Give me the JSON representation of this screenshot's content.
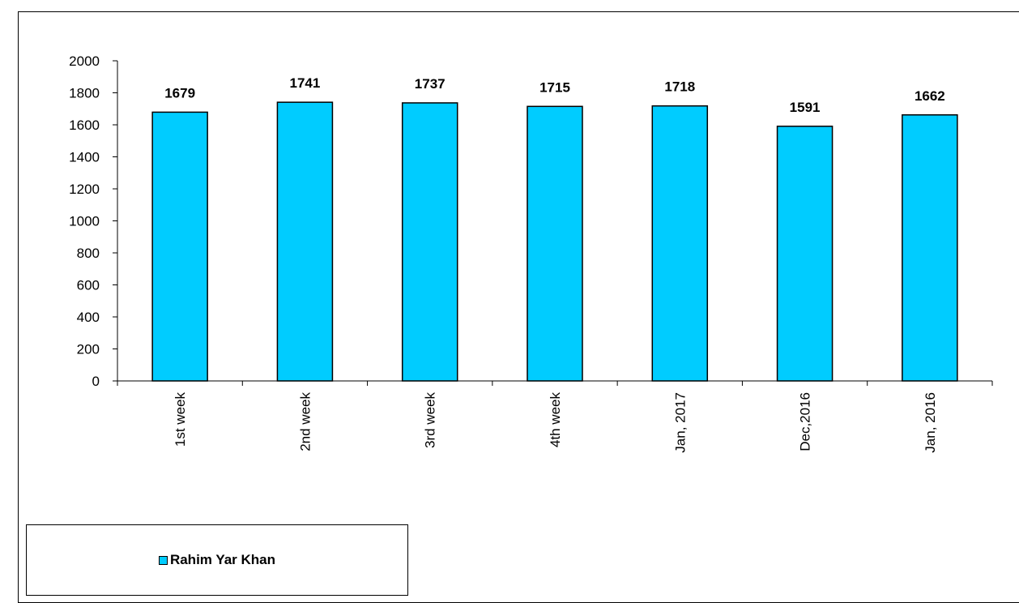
{
  "chart_data": {
    "type": "bar",
    "categories": [
      "1st week",
      "2nd week",
      "3rd week",
      "4th week",
      "Jan, 2017",
      "Dec,2016",
      "Jan, 2016"
    ],
    "series": [
      {
        "name": "Rahim Yar Khan",
        "values": [
          1679,
          1741,
          1737,
          1715,
          1718,
          1591,
          1662
        ]
      }
    ],
    "ylim": [
      0,
      2000
    ],
    "yticks": [
      0,
      200,
      400,
      600,
      800,
      1000,
      1200,
      1400,
      1600,
      1800,
      2000
    ],
    "grid": false,
    "legend_position": "bottom-left",
    "bar_color": "#00ccff",
    "data_labels": true
  }
}
